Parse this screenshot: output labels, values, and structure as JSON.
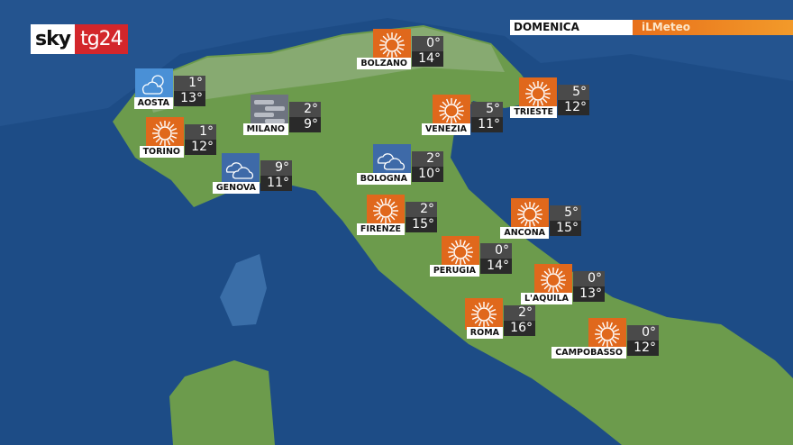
{
  "brand": {
    "sky": "sky",
    "tg": "tg24"
  },
  "header": {
    "day": "DOMENICA",
    "provider": "iLMeteo",
    "accent": "#e8701b"
  },
  "colors": {
    "sea": "#1d4c86",
    "land": "#6c9b4c",
    "sun_icon_bg": "#e0681c"
  },
  "cities": [
    {
      "name": "BOLZANO",
      "icon": "sun-icon",
      "min": "0°",
      "max": "14°"
    },
    {
      "name": "AOSTA",
      "icon": "partly-cloudy-icon",
      "min": "1°",
      "max": "13°"
    },
    {
      "name": "MILANO",
      "icon": "fog-icon",
      "min": "2°",
      "max": "9°"
    },
    {
      "name": "TORINO",
      "icon": "sun-icon",
      "min": "1°",
      "max": "12°"
    },
    {
      "name": "GENOVA",
      "icon": "cloud-icon",
      "min": "9°",
      "max": "11°"
    },
    {
      "name": "BOLOGNA",
      "icon": "cloud-icon",
      "min": "2°",
      "max": "10°"
    },
    {
      "name": "VENEZIA",
      "icon": "sun-icon",
      "min": "5°",
      "max": "11°"
    },
    {
      "name": "TRIESTE",
      "icon": "sun-icon",
      "min": "5°",
      "max": "12°"
    },
    {
      "name": "FIRENZE",
      "icon": "sun-icon",
      "min": "2°",
      "max": "15°"
    },
    {
      "name": "ANCONA",
      "icon": "sun-icon",
      "min": "5°",
      "max": "15°"
    },
    {
      "name": "PERUGIA",
      "icon": "sun-icon",
      "min": "0°",
      "max": "14°"
    },
    {
      "name": "L'AQUILA",
      "icon": "sun-icon",
      "min": "0°",
      "max": "13°"
    },
    {
      "name": "ROMA",
      "icon": "sun-icon",
      "min": "2°",
      "max": "16°"
    },
    {
      "name": "CAMPOBASSO",
      "icon": "sun-icon",
      "min": "0°",
      "max": "12°"
    }
  ]
}
